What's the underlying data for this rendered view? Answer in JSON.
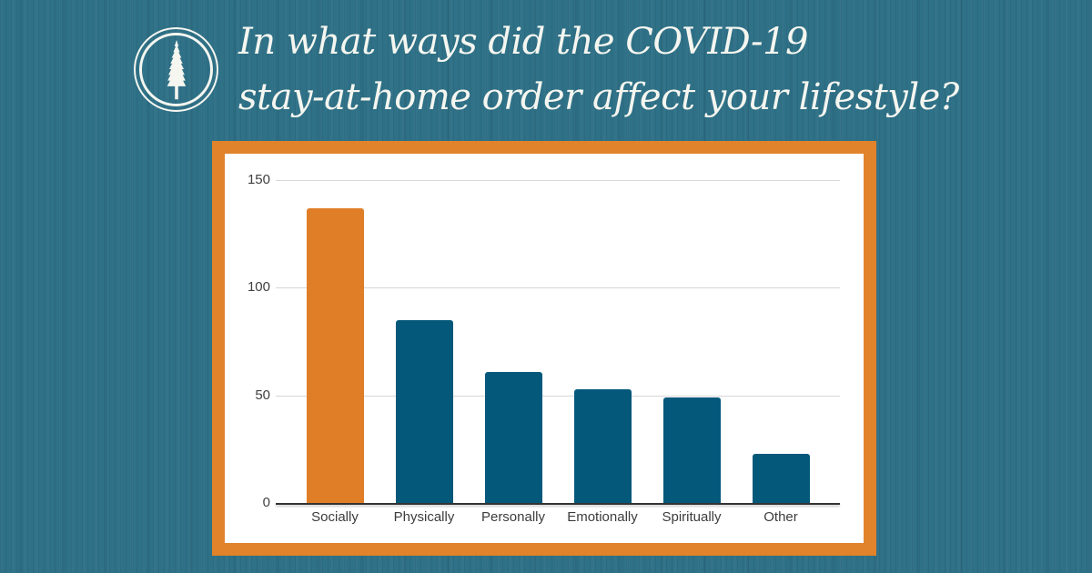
{
  "colors": {
    "background_teal": "#2f7187",
    "frame_orange": "#e0832b",
    "bar_orange": "#e07e27",
    "bar_blue": "#04587a",
    "title_white": "#f5f6f0",
    "gridline_gray": "#d7d7d7",
    "axis_dark": "#333333"
  },
  "header": {
    "logo_icon": "sequoia-tree-in-double-circle",
    "title_line1": "In what ways did the COVID-19",
    "title_line2": "stay-at-home order affect your lifestyle?"
  },
  "chart_data": {
    "type": "bar",
    "title": "In what ways did the COVID-19 stay-at-home order affect your lifestyle?",
    "categories": [
      "Socially",
      "Physically",
      "Personally",
      "Emotionally",
      "Spiritually",
      "Other"
    ],
    "values": [
      137,
      85,
      61,
      53,
      49,
      23
    ],
    "bar_colors": [
      "#e07e27",
      "#04587a",
      "#04587a",
      "#04587a",
      "#04587a",
      "#04587a"
    ],
    "xlabel": "",
    "ylabel": "",
    "ylim": [
      0,
      150
    ],
    "yticks": [
      0,
      50,
      100,
      150
    ],
    "grid": true,
    "legend": "none"
  }
}
